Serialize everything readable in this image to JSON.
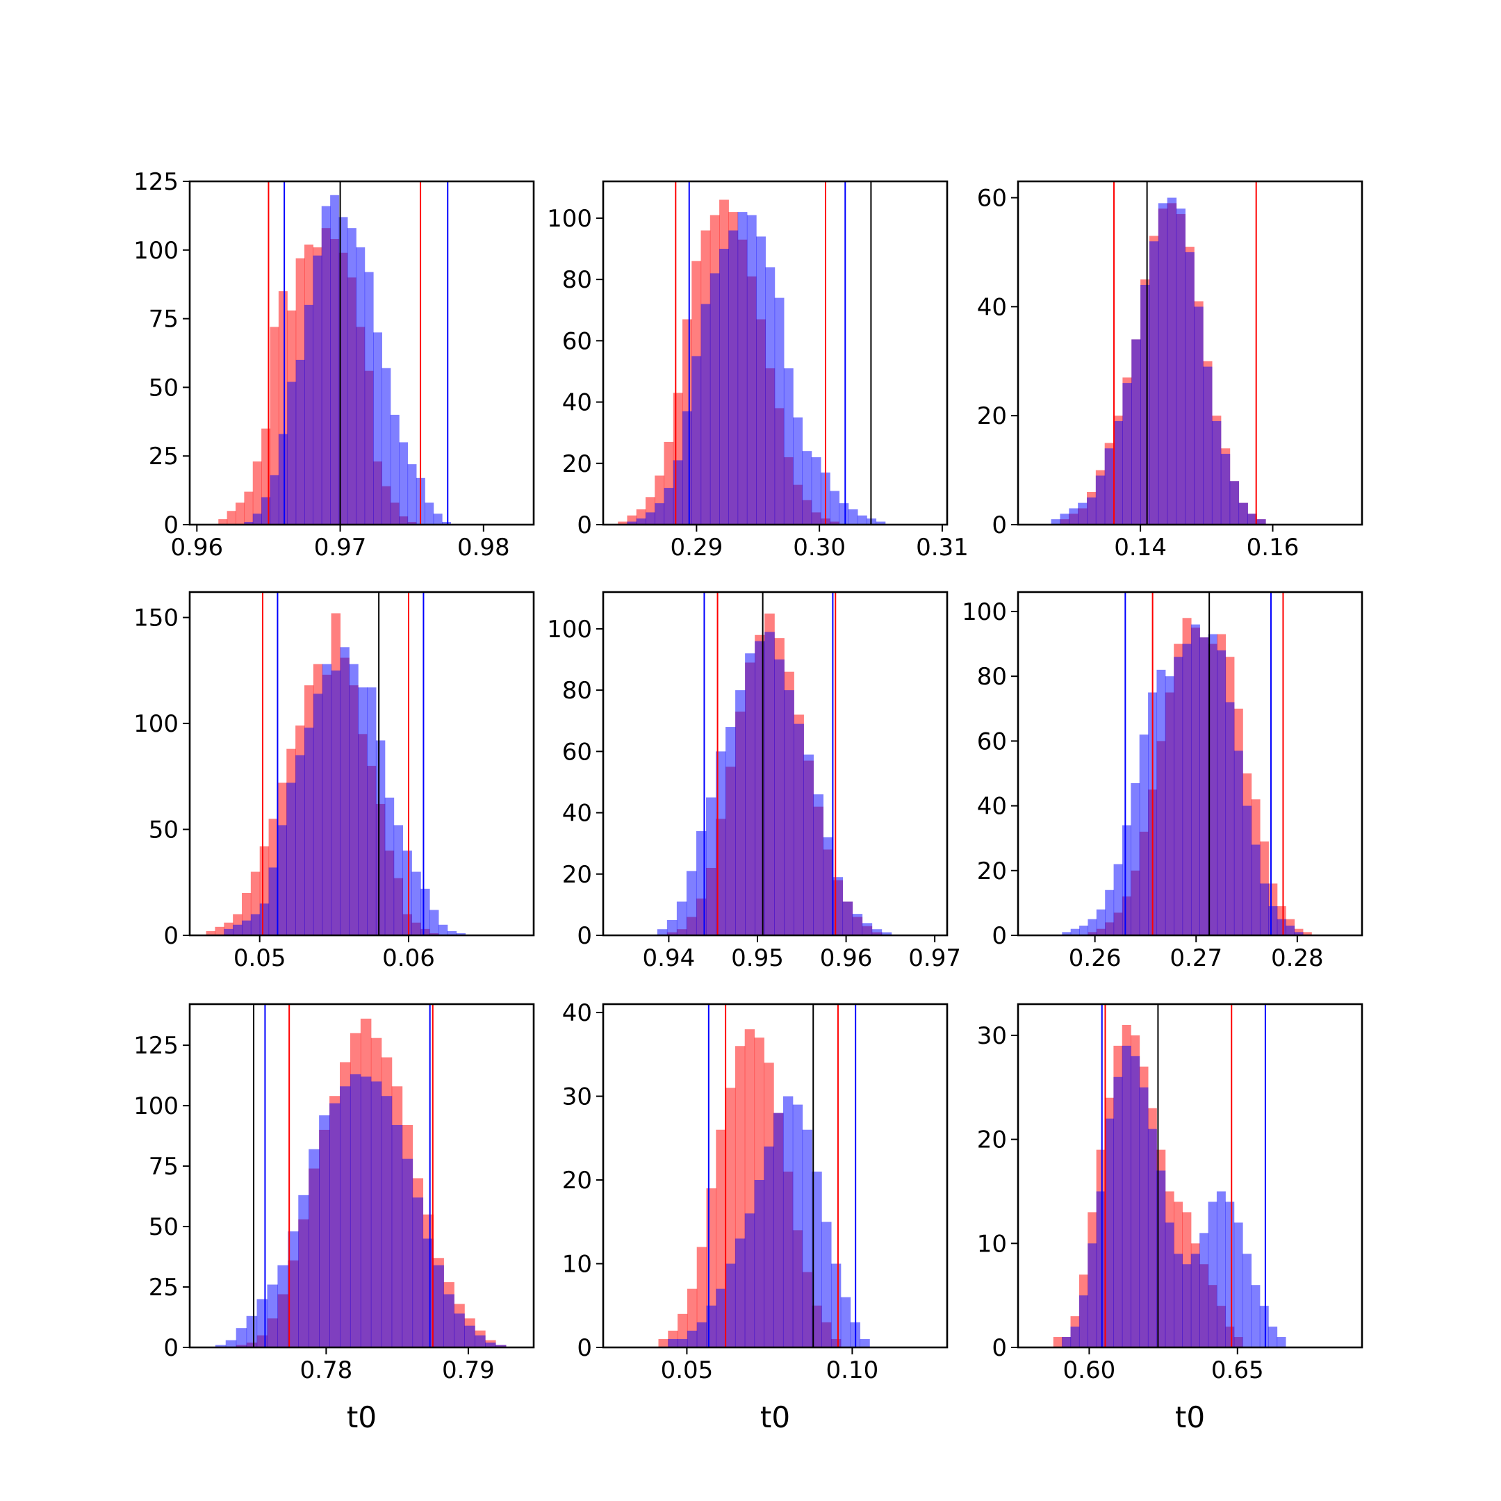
{
  "figure": {
    "colors": {
      "red": "#ff0000",
      "blue": "#0000ff",
      "black": "#000000",
      "hist_red": "#ff7f7f",
      "hist_blue": "#7f7fff",
      "overlap": "#7f3fbf"
    }
  },
  "chart_data": [
    {
      "type": "histogram",
      "xlabel": "",
      "xlim": [
        0.9595,
        0.9835
      ],
      "ylim": [
        0,
        125
      ],
      "xticks": [
        0.96,
        0.97,
        0.98
      ],
      "xtick_labels": [
        "0.96",
        "0.97",
        "0.98"
      ],
      "yticks": [
        0,
        25,
        50,
        75,
        100,
        125
      ],
      "ytick_labels": [
        "0",
        "25",
        "50",
        "75",
        "100",
        "125"
      ],
      "bin_start": 0.9615,
      "bin_width": 0.0006,
      "series": [
        {
          "color": "red",
          "counts": [
            2,
            5,
            8,
            12,
            23,
            35,
            72,
            85,
            78,
            97,
            102,
            101,
            108,
            104,
            99,
            90,
            72,
            56,
            23,
            14,
            8,
            3,
            1,
            0,
            0,
            0,
            0
          ]
        },
        {
          "color": "blue",
          "counts": [
            0,
            0,
            0,
            1,
            4,
            10,
            18,
            33,
            52,
            60,
            80,
            98,
            116,
            120,
            112,
            108,
            101,
            92,
            70,
            57,
            40,
            30,
            22,
            17,
            8,
            4,
            1
          ]
        }
      ],
      "vlines": [
        {
          "x": 0.965,
          "color": "red"
        },
        {
          "x": 0.9756,
          "color": "red"
        },
        {
          "x": 0.9661,
          "color": "blue"
        },
        {
          "x": 0.9775,
          "color": "blue"
        },
        {
          "x": 0.97,
          "color": "black"
        }
      ]
    },
    {
      "type": "histogram",
      "xlabel": "",
      "xlim": [
        0.2824,
        0.3104
      ],
      "ylim": [
        0,
        112
      ],
      "xticks": [
        0.29,
        0.3,
        0.31
      ],
      "xtick_labels": [
        "0.29",
        "0.30",
        "0.31"
      ],
      "yticks": [
        0,
        20,
        40,
        60,
        80,
        100
      ],
      "ytick_labels": [
        "0",
        "20",
        "40",
        "60",
        "80",
        "100"
      ],
      "bin_start": 0.2836,
      "bin_width": 0.00075,
      "series": [
        {
          "color": "red",
          "counts": [
            1,
            3,
            5,
            9,
            16,
            27,
            43,
            67,
            86,
            96,
            101,
            106,
            102,
            93,
            81,
            67,
            51,
            38,
            22,
            13,
            8,
            4,
            2,
            1,
            0,
            0,
            0,
            0,
            0,
            0
          ]
        },
        {
          "color": "blue",
          "counts": [
            0,
            1,
            2,
            4,
            7,
            12,
            21,
            37,
            55,
            72,
            82,
            90,
            96,
            102,
            101,
            94,
            84,
            74,
            51,
            35,
            24,
            22,
            17,
            11,
            7,
            5,
            3,
            2,
            1,
            0
          ]
        }
      ],
      "vlines": [
        {
          "x": 0.2883,
          "color": "red"
        },
        {
          "x": 0.3005,
          "color": "red"
        },
        {
          "x": 0.2894,
          "color": "blue"
        },
        {
          "x": 0.3021,
          "color": "blue"
        },
        {
          "x": 0.3042,
          "color": "black"
        }
      ]
    },
    {
      "type": "histogram",
      "xlabel": "",
      "xlim": [
        0.1215,
        0.1735
      ],
      "ylim": [
        0,
        63
      ],
      "xticks": [
        0.14,
        0.16
      ],
      "xtick_labels": [
        "0.14",
        "0.16"
      ],
      "yticks": [
        0,
        20,
        40,
        60
      ],
      "ytick_labels": [
        "0",
        "20",
        "40",
        "60"
      ],
      "bin_start": 0.1265,
      "bin_width": 0.00135,
      "series": [
        {
          "color": "red",
          "counts": [
            0,
            1,
            2,
            3,
            6,
            10,
            15,
            20,
            27,
            34,
            45,
            53,
            58,
            59,
            57,
            51,
            41,
            30,
            20,
            14,
            8,
            4,
            2,
            1,
            0,
            0,
            0,
            0,
            0,
            0
          ]
        },
        {
          "color": "blue",
          "counts": [
            1,
            2,
            3,
            4,
            5,
            9,
            14,
            19,
            26,
            34,
            44,
            52,
            59,
            60,
            58,
            50,
            40,
            29,
            19,
            13,
            8,
            4,
            2,
            1,
            0,
            0,
            0,
            0,
            0,
            0
          ]
        }
      ],
      "vlines": [
        {
          "x": 0.136,
          "color": "red"
        },
        {
          "x": 0.1575,
          "color": "red"
        },
        {
          "x": 0.141,
          "color": "black"
        }
      ]
    },
    {
      "type": "histogram",
      "xlabel": "",
      "xlim": [
        0.0453,
        0.0684
      ],
      "ylim": [
        0,
        162
      ],
      "xticks": [
        0.05,
        0.06
      ],
      "xtick_labels": [
        "0.05",
        "0.06"
      ],
      "yticks": [
        0,
        50,
        100,
        150
      ],
      "ytick_labels": [
        "0",
        "50",
        "100",
        "150"
      ],
      "bin_start": 0.0464,
      "bin_width": 0.0006,
      "series": [
        {
          "color": "red",
          "counts": [
            2,
            4,
            6,
            10,
            20,
            30,
            42,
            55,
            72,
            88,
            99,
            118,
            128,
            123,
            152,
            131,
            118,
            95,
            80,
            62,
            40,
            27,
            10,
            6,
            3,
            1,
            0,
            0,
            0,
            0,
            0,
            0
          ]
        },
        {
          "color": "blue",
          "counts": [
            0,
            0,
            3,
            5,
            7,
            10,
            15,
            32,
            52,
            72,
            85,
            98,
            114,
            128,
            125,
            136,
            128,
            117,
            117,
            92,
            65,
            52,
            40,
            30,
            22,
            12,
            5,
            2,
            1,
            0,
            0,
            0
          ]
        }
      ],
      "vlines": [
        {
          "x": 0.0502,
          "color": "red"
        },
        {
          "x": 0.06,
          "color": "red"
        },
        {
          "x": 0.0512,
          "color": "blue"
        },
        {
          "x": 0.061,
          "color": "blue"
        },
        {
          "x": 0.058,
          "color": "black"
        }
      ]
    },
    {
      "type": "histogram",
      "xlabel": "",
      "xlim": [
        0.9326,
        0.9714
      ],
      "ylim": [
        0,
        112
      ],
      "xticks": [
        0.94,
        0.95,
        0.96,
        0.97
      ],
      "xtick_labels": [
        "0.94",
        "0.95",
        "0.96",
        "0.97"
      ],
      "bin_start": 0.9387,
      "bin_width": 0.0011,
      "yticks": [
        0,
        20,
        40,
        60,
        80,
        100
      ],
      "ytick_labels": [
        "0",
        "20",
        "40",
        "60",
        "80",
        "100"
      ],
      "series": [
        {
          "color": "red",
          "counts": [
            0,
            1,
            2,
            6,
            12,
            22,
            38,
            55,
            73,
            89,
            98,
            105,
            97,
            86,
            72,
            57,
            42,
            28,
            18,
            11,
            6,
            3,
            1,
            0,
            0,
            0,
            0,
            0
          ]
        },
        {
          "color": "blue",
          "counts": [
            2,
            5,
            11,
            21,
            34,
            45,
            60,
            68,
            80,
            92,
            96,
            99,
            90,
            80,
            69,
            59,
            46,
            32,
            19,
            11,
            7,
            4,
            2,
            1,
            0,
            0,
            0,
            0
          ]
        }
      ],
      "vlines": [
        {
          "x": 0.9455,
          "color": "red"
        },
        {
          "x": 0.9588,
          "color": "red"
        },
        {
          "x": 0.944,
          "color": "blue"
        },
        {
          "x": 0.9585,
          "color": "blue"
        },
        {
          "x": 0.9506,
          "color": "black"
        }
      ]
    },
    {
      "type": "histogram",
      "xlabel": "",
      "xlim": [
        0.2524,
        0.2864
      ],
      "ylim": [
        0,
        106
      ],
      "xticks": [
        0.26,
        0.27,
        0.28
      ],
      "xtick_labels": [
        "0.26",
        "0.27",
        "0.28"
      ],
      "yticks": [
        0,
        20,
        40,
        60,
        80,
        100
      ],
      "ytick_labels": [
        "0",
        "20",
        "40",
        "60",
        "80",
        "100"
      ],
      "bin_start": 0.2559,
      "bin_width": 0.00085,
      "series": [
        {
          "color": "red",
          "counts": [
            0,
            0,
            0,
            0,
            1,
            2,
            4,
            7,
            12,
            20,
            32,
            45,
            60,
            75,
            90,
            98,
            95,
            92,
            90,
            93,
            86,
            70,
            50,
            42,
            29,
            16,
            9,
            5,
            2,
            1,
            0,
            0,
            0,
            0
          ]
        },
        {
          "color": "blue",
          "counts": [
            0,
            1,
            2,
            3,
            5,
            8,
            14,
            22,
            34,
            47,
            62,
            75,
            82,
            80,
            86,
            90,
            96,
            92,
            93,
            88,
            72,
            57,
            40,
            28,
            16,
            9,
            5,
            3,
            1,
            0,
            0,
            0,
            0,
            0
          ]
        }
      ],
      "vlines": [
        {
          "x": 0.2657,
          "color": "red"
        },
        {
          "x": 0.2786,
          "color": "red"
        },
        {
          "x": 0.263,
          "color": "blue"
        },
        {
          "x": 0.2774,
          "color": "blue"
        },
        {
          "x": 0.2713,
          "color": "black"
        }
      ]
    },
    {
      "type": "histogram",
      "xlabel": "t0",
      "xlim": [
        0.7704,
        0.7946
      ],
      "ylim": [
        0,
        142
      ],
      "xticks": [
        0.78,
        0.79
      ],
      "xtick_labels": [
        "0.78",
        "0.79"
      ],
      "yticks": [
        0,
        25,
        50,
        75,
        100,
        125
      ],
      "ytick_labels": [
        "0",
        "25",
        "50",
        "75",
        "100",
        "125"
      ],
      "bin_start": 0.7722,
      "bin_width": 0.00073,
      "series": [
        {
          "color": "red",
          "counts": [
            0,
            0,
            1,
            2,
            5,
            12,
            22,
            36,
            53,
            74,
            90,
            104,
            118,
            130,
            136,
            128,
            120,
            108,
            92,
            70,
            55,
            37,
            27,
            18,
            12,
            7,
            3,
            1,
            0,
            0,
            0
          ]
        },
        {
          "color": "blue",
          "counts": [
            1,
            3,
            8,
            13,
            20,
            26,
            34,
            48,
            63,
            82,
            96,
            101,
            108,
            113,
            112,
            110,
            104,
            92,
            78,
            62,
            45,
            34,
            22,
            14,
            9,
            5,
            2,
            1,
            0,
            0,
            0
          ]
        }
      ],
      "vlines": [
        {
          "x": 0.7774,
          "color": "red"
        },
        {
          "x": 0.7875,
          "color": "red"
        },
        {
          "x": 0.7757,
          "color": "blue"
        },
        {
          "x": 0.7873,
          "color": "blue"
        },
        {
          "x": 0.7749,
          "color": "black"
        }
      ]
    },
    {
      "type": "histogram",
      "xlabel": "t0",
      "xlim": [
        0.0247,
        0.1287
      ],
      "ylim": [
        0,
        41
      ],
      "xticks": [
        0.05,
        0.1
      ],
      "xtick_labels": [
        "0.05",
        "0.10"
      ],
      "yticks": [
        0,
        10,
        20,
        30,
        40
      ],
      "ytick_labels": [
        "0",
        "10",
        "20",
        "30",
        "40"
      ],
      "bin_start": 0.0327,
      "bin_width": 0.0029,
      "series": [
        {
          "color": "red",
          "counts": [
            0,
            0,
            0,
            1,
            2,
            4,
            7,
            12,
            19,
            26,
            31,
            36,
            38,
            37,
            34,
            28,
            21,
            14,
            9,
            5,
            3,
            1,
            0,
            0,
            0,
            0,
            0,
            0,
            0,
            0,
            0,
            0
          ]
        },
        {
          "color": "blue",
          "counts": [
            0,
            0,
            0,
            0,
            1,
            1,
            2,
            3,
            5,
            7,
            10,
            13,
            16,
            20,
            24,
            28,
            30,
            29,
            26,
            21,
            15,
            10,
            6,
            3,
            1,
            0,
            0,
            0,
            0,
            0,
            0,
            0
          ]
        }
      ],
      "vlines": [
        {
          "x": 0.0617,
          "color": "red"
        },
        {
          "x": 0.0957,
          "color": "red"
        },
        {
          "x": 0.0566,
          "color": "blue"
        },
        {
          "x": 0.101,
          "color": "blue"
        },
        {
          "x": 0.0882,
          "color": "black"
        }
      ]
    },
    {
      "type": "histogram",
      "xlabel": "t0",
      "xlim": [
        0.576,
        0.692
      ],
      "ylim": [
        0,
        33
      ],
      "xticks": [
        0.6,
        0.65
      ],
      "xtick_labels": [
        "0.60",
        "0.65"
      ],
      "yticks": [
        0,
        10,
        20,
        30
      ],
      "ytick_labels": [
        "0",
        "10",
        "20",
        "30"
      ],
      "bin_start": 0.585,
      "bin_width": 0.0029,
      "series": [
        {
          "color": "red",
          "counts": [
            0,
            1,
            1,
            3,
            7,
            13,
            19,
            24,
            29,
            31,
            30,
            27,
            23,
            19,
            15,
            14,
            13,
            10,
            8,
            6,
            4,
            2,
            1,
            0,
            0,
            0,
            0,
            0,
            0,
            0,
            0,
            0
          ]
        },
        {
          "color": "blue",
          "counts": [
            0,
            0,
            1,
            2,
            5,
            10,
            15,
            22,
            26,
            29,
            28,
            25,
            21,
            17,
            12,
            9,
            8,
            9,
            11,
            14,
            15,
            14,
            12,
            9,
            6,
            4,
            2,
            1,
            0,
            0,
            0,
            0
          ]
        }
      ],
      "vlines": [
        {
          "x": 0.6054,
          "color": "red"
        },
        {
          "x": 0.648,
          "color": "red"
        },
        {
          "x": 0.6043,
          "color": "blue"
        },
        {
          "x": 0.6594,
          "color": "blue"
        },
        {
          "x": 0.6232,
          "color": "black"
        }
      ]
    }
  ]
}
